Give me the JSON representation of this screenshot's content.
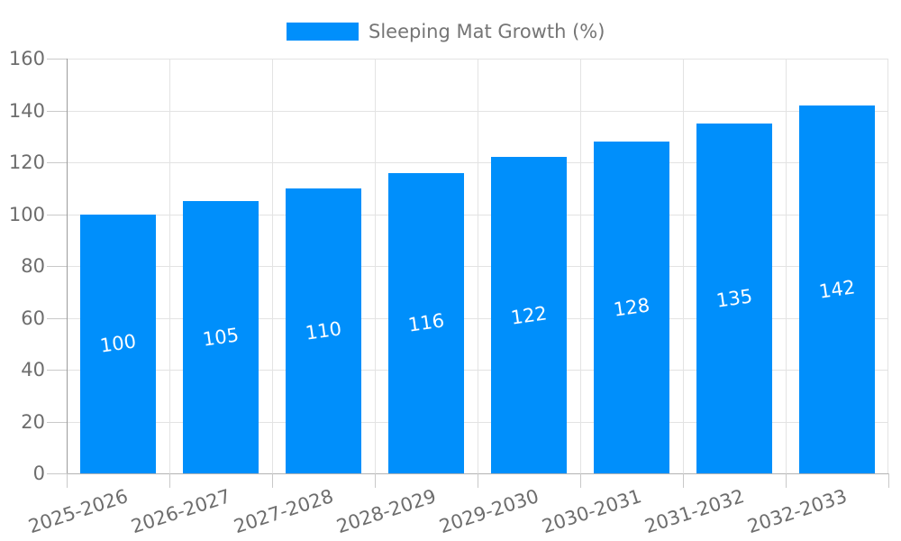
{
  "legend": {
    "series_label": "Sleeping Mat Growth (%)"
  },
  "chart_data": {
    "type": "bar",
    "title": "",
    "xlabel": "",
    "ylabel": "",
    "categories": [
      "2025-2026",
      "2026-2027",
      "2027-2028",
      "2028-2029",
      "2029-2030",
      "2030-2031",
      "2031-2032",
      "2032-2033"
    ],
    "series": [
      {
        "name": "Sleeping Mat Growth (%)",
        "values": [
          100,
          105,
          110,
          116,
          122,
          128,
          135,
          142
        ]
      }
    ],
    "value_labels": [
      "100",
      "105",
      "110",
      "116",
      "122",
      "128",
      "135",
      "142"
    ],
    "ylim": [
      0,
      160
    ],
    "ytick_step": 20,
    "yticks": [
      0,
      20,
      40,
      60,
      80,
      100,
      120,
      140,
      160
    ],
    "grid": true,
    "legend_position": "top-center",
    "x_label_rotation_deg": -18,
    "value_label_rotation_deg": -8
  },
  "colors": {
    "bar": "#008FFB",
    "axis_text": "#6d6d6d",
    "legend_text": "#757575",
    "value_label_text": "#ffffff",
    "grid_line": "#e3e3e3",
    "tick_line": "#c9c9c9",
    "y_axis_line": "#9b9b9b",
    "x_axis_line": "#b3b3b3",
    "background": "#ffffff"
  }
}
